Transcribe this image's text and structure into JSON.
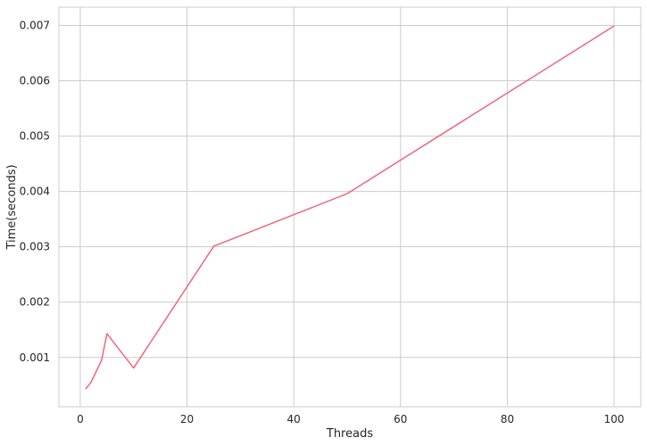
{
  "chart_data": {
    "type": "line",
    "title": "",
    "xlabel": "Threads",
    "ylabel": "Time(seconds)",
    "xlim": [
      -4,
      105
    ],
    "ylim": [
      0.00011,
      0.00733
    ],
    "x_ticks": [
      0,
      20,
      40,
      60,
      80,
      100
    ],
    "x_tick_labels": [
      "0",
      "20",
      "40",
      "60",
      "80",
      "100"
    ],
    "y_ticks": [
      0.001,
      0.002,
      0.003,
      0.004,
      0.005,
      0.006,
      0.007
    ],
    "y_tick_labels": [
      "0.001",
      "0.002",
      "0.003",
      "0.004",
      "0.005",
      "0.006",
      "0.007"
    ],
    "grid": true,
    "series": [
      {
        "color": "#f0677a",
        "x": [
          1,
          2,
          4,
          5,
          10,
          25,
          50,
          100
        ],
        "y": [
          0.00043,
          0.00055,
          0.00095,
          0.00143,
          0.00081,
          0.00301,
          0.00396,
          0.00699
        ]
      }
    ]
  }
}
